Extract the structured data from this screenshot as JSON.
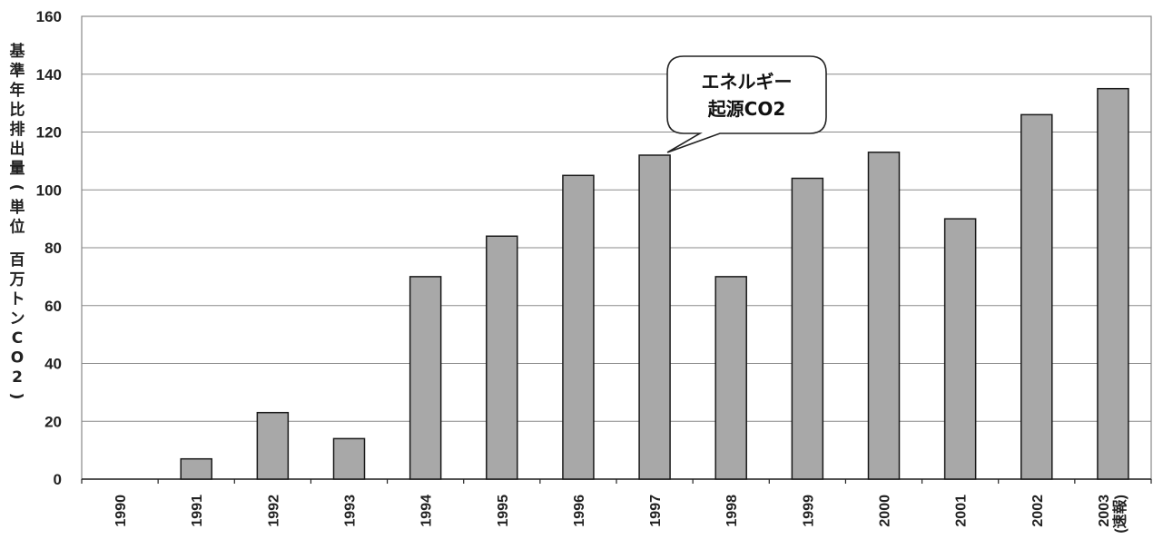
{
  "chart_data": {
    "type": "bar",
    "categories": [
      "1990",
      "1991",
      "1992",
      "1993",
      "1994",
      "1995",
      "1996",
      "1997",
      "1998",
      "1999",
      "2000",
      "2001",
      "2002",
      "2003"
    ],
    "category_sublabels": [
      "",
      "",
      "",
      "",
      "",
      "",
      "",
      "",
      "",
      "",
      "",
      "",
      "",
      "(速報)"
    ],
    "values": [
      0,
      7,
      23,
      14,
      70,
      84,
      105,
      112,
      70,
      104,
      113,
      90,
      126,
      135
    ],
    "ylabel": "基準年比排出量(単位 百万トンCO2)",
    "ylim": [
      0,
      160
    ],
    "yticks": [
      0,
      20,
      40,
      60,
      80,
      100,
      120,
      140,
      160
    ],
    "grid": true,
    "bar_color": "#a8a8a8",
    "annotation": {
      "line1": "エネルギー",
      "line2": "起源CO2",
      "target_category": "1997"
    }
  }
}
